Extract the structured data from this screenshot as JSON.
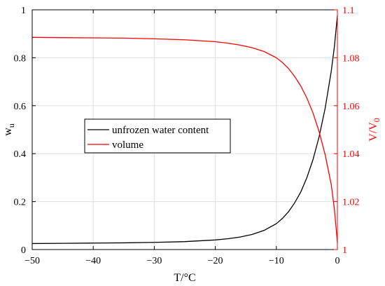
{
  "chart_data": {
    "type": "line",
    "title": "",
    "xlabel": "T/°C",
    "ylabel_left": {
      "main": "w",
      "sub": "u"
    },
    "ylabel_right": {
      "main": "V/V",
      "sub": "0"
    },
    "xlim": [
      -50,
      0
    ],
    "ylim_left": [
      0,
      1
    ],
    "ylim_right": [
      1.0,
      1.1
    ],
    "x_ticks": [
      -50,
      -40,
      -30,
      -20,
      -10,
      0
    ],
    "x_tick_labels": [
      "−50",
      "−40",
      "−30",
      "−20",
      "−10",
      "0"
    ],
    "y_left_ticks": [
      0,
      0.2,
      0.4,
      0.6,
      0.8,
      1
    ],
    "y_left_tick_labels": [
      "0",
      "0.2",
      "0.4",
      "0.6",
      "0.8",
      "1"
    ],
    "y_right_ticks": [
      1.0,
      1.02,
      1.04,
      1.06,
      1.08,
      1.1
    ],
    "y_right_tick_labels": [
      "1",
      "1.02",
      "1.04",
      "1.06",
      "1.08",
      "1.1"
    ],
    "grid": true,
    "legend_position": "center-left",
    "series": [
      {
        "name": "unfrozen water content",
        "axis": "left",
        "color": "#000000",
        "x": [
          -50,
          -45,
          -40,
          -35,
          -30,
          -25,
          -20,
          -18,
          -16,
          -14,
          -12,
          -10,
          -9,
          -8,
          -7,
          -6,
          -5,
          -4,
          -3,
          -2,
          -1,
          -0.5,
          0
        ],
        "y": [
          0.025,
          0.026,
          0.027,
          0.028,
          0.03,
          0.033,
          0.04,
          0.045,
          0.052,
          0.063,
          0.08,
          0.108,
          0.13,
          0.158,
          0.195,
          0.24,
          0.3,
          0.375,
          0.47,
          0.59,
          0.745,
          0.845,
          0.975
        ]
      },
      {
        "name": "volume",
        "axis": "right",
        "color": "#ff0000",
        "x": [
          -50,
          -45,
          -40,
          -35,
          -30,
          -25,
          -20,
          -18,
          -16,
          -14,
          -12,
          -10,
          -9,
          -8,
          -7,
          -6,
          -5,
          -4,
          -3,
          -2,
          -1,
          -0.5,
          0
        ],
        "y": [
          1.0885,
          1.0884,
          1.0883,
          1.0882,
          1.0879,
          1.0875,
          1.0867,
          1.0861,
          1.0853,
          1.0842,
          1.0826,
          1.08,
          1.078,
          1.0755,
          1.0722,
          1.0682,
          1.0632,
          1.057,
          1.0492,
          1.0395,
          1.027,
          1.017,
          1.003
        ]
      }
    ]
  },
  "colors": {
    "left_axis": "#000000",
    "right_axis": "#ff0000",
    "grid": "#e0e0e0"
  }
}
